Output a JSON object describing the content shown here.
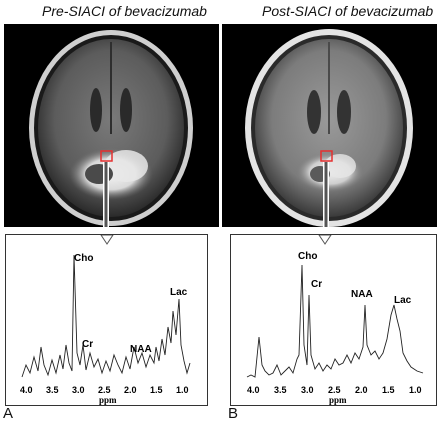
{
  "panels": [
    {
      "letter": "A",
      "title": "Pre-SIACI of bevacizumab",
      "peaks": {
        "cho": "Cho",
        "cr": "Cr",
        "naa": "NAA",
        "lac": "Lac"
      },
      "x_ticks": [
        "4.0",
        "3.5",
        "3.0",
        "2.5",
        "2.0",
        "1.5",
        "1.0"
      ],
      "x_label": "ppm"
    },
    {
      "letter": "B",
      "title": "Post-SIACI of bevacizumab",
      "peaks": {
        "cho": "Cho",
        "cr": "Cr",
        "naa": "NAA",
        "lac": "Lac"
      },
      "x_ticks": [
        "4.0",
        "3.5",
        "3.0",
        "2.5",
        "2.0",
        "1.5",
        "1.0"
      ],
      "x_label": "ppm"
    }
  ],
  "colors": {
    "roi_box": "#e53030",
    "arrow": "#ffffff",
    "background": "#000000"
  }
}
